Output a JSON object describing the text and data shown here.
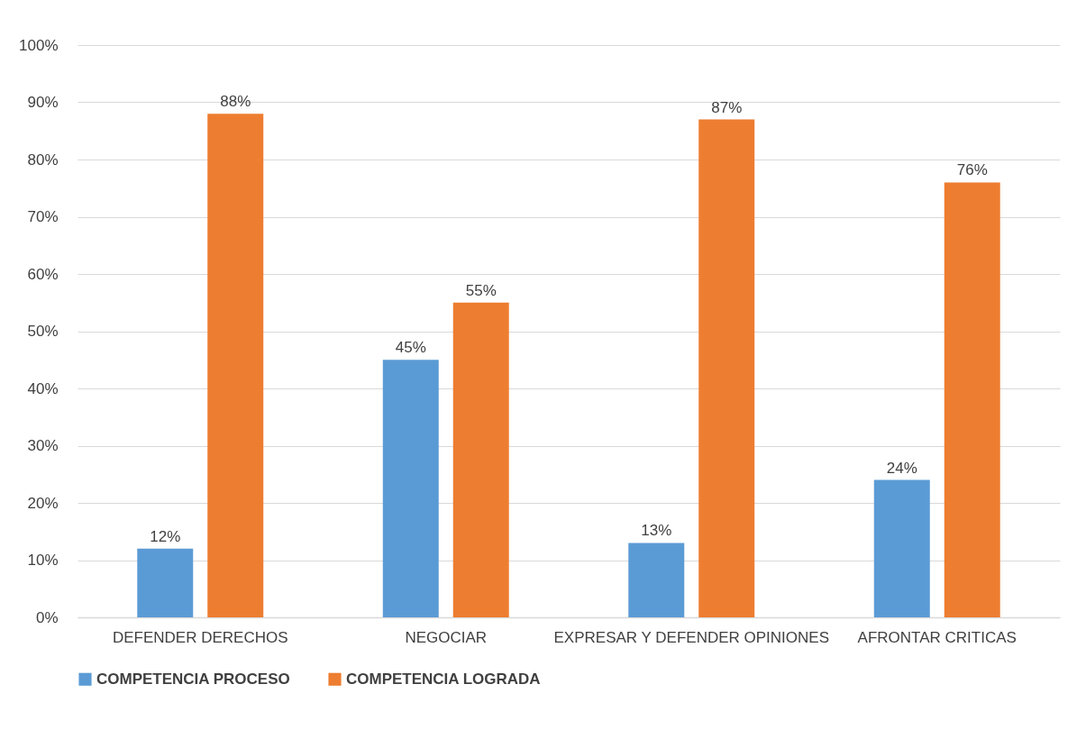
{
  "chart_data": {
    "type": "bar",
    "categories": [
      "DEFENDER DERECHOS",
      "NEGOCIAR",
      "EXPRESAR Y DEFENDER OPINIONES",
      "AFRONTAR CRITICAS"
    ],
    "series": [
      {
        "name": "COMPETENCIA PROCESO",
        "color": "#5b9bd5",
        "values": [
          12,
          45,
          13,
          24
        ],
        "value_labels": [
          "12%",
          "45%",
          "13%",
          "24%"
        ]
      },
      {
        "name": "COMPETENCIA LOGRADA",
        "color": "#ed7d31",
        "values": [
          88,
          55,
          87,
          76
        ],
        "value_labels": [
          "88%",
          "55%",
          "87%",
          "76%"
        ]
      }
    ],
    "ylim": [
      0,
      100
    ],
    "yticks": [
      {
        "value": 0,
        "label": "0%"
      },
      {
        "value": 10,
        "label": "10%"
      },
      {
        "value": 20,
        "label": "20%"
      },
      {
        "value": 30,
        "label": "30%"
      },
      {
        "value": 40,
        "label": "40%"
      },
      {
        "value": 50,
        "label": "50%"
      },
      {
        "value": 60,
        "label": "60%"
      },
      {
        "value": 70,
        "label": "70%"
      },
      {
        "value": 80,
        "label": "80%"
      },
      {
        "value": 90,
        "label": "90%"
      },
      {
        "value": 100,
        "label": "100%"
      }
    ],
    "grid": "y",
    "legend": "bottom"
  }
}
